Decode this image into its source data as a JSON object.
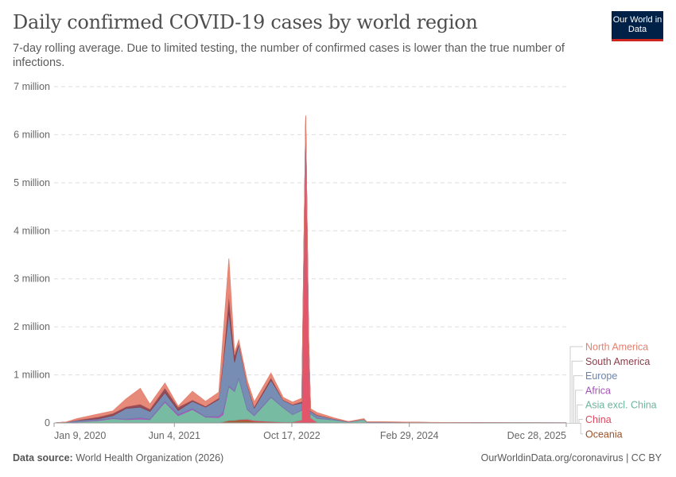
{
  "header": {
    "title": "Daily confirmed COVID-19 cases by world region",
    "subtitle": "7-day rolling average. Due to limited testing, the number of confirmed cases is lower than the true number of infections.",
    "logo_text": "Our World in Data"
  },
  "footer": {
    "source_label": "Data source:",
    "source": "World Health Organization (2026)",
    "credit": "OurWorldinData.org/coronavirus | CC BY"
  },
  "chart_data": {
    "type": "area",
    "stacked": true,
    "title": "Daily confirmed COVID-19 cases by world region",
    "xlabel": "",
    "ylabel": "",
    "ylim": [
      0,
      7000000
    ],
    "y_ticks": [
      0,
      1000000,
      2000000,
      3000000,
      4000000,
      5000000,
      6000000,
      7000000
    ],
    "y_tick_labels": [
      "0",
      "1 million",
      "2 million",
      "3 million",
      "4 million",
      "5 million",
      "6 million",
      "7 million"
    ],
    "x_range": [
      "2020-01-09",
      "2025-12-28"
    ],
    "x_ticks": [
      "2020-01-09",
      "2021-06-04",
      "2022-10-17",
      "2024-02-29",
      "2025-12-28"
    ],
    "x_tick_labels": [
      "Jan 9, 2020",
      "Jun 4, 2021",
      "Oct 17, 2022",
      "Feb 29, 2024",
      "Dec 28, 2025"
    ],
    "grid": "horizontal dashed",
    "legend_placement": "right",
    "unit_note": "values in millions of cases",
    "x": [
      "2020-01-09",
      "2020-03-01",
      "2020-04-15",
      "2020-07-15",
      "2020-09-15",
      "2020-11-10",
      "2021-01-10",
      "2021-02-20",
      "2021-04-25",
      "2021-06-20",
      "2021-08-20",
      "2021-10-15",
      "2021-12-10",
      "2021-12-28",
      "2022-01-22",
      "2022-02-15",
      "2022-03-05",
      "2022-04-10",
      "2022-05-10",
      "2022-07-20",
      "2022-09-10",
      "2022-10-20",
      "2022-11-28",
      "2022-12-15",
      "2022-12-28",
      "2023-01-05",
      "2023-02-01",
      "2023-04-15",
      "2023-06-15",
      "2023-08-20",
      "2023-09-01",
      "2024-01-01",
      "2024-06-01",
      "2025-01-01",
      "2025-12-28"
    ],
    "series": [
      {
        "name": "Oceania",
        "color": "#9a5129",
        "values": [
          0,
          0,
          0,
          0,
          0,
          0,
          0,
          0,
          0,
          0,
          0,
          0,
          0.01,
          0.02,
          0.05,
          0.05,
          0.06,
          0.06,
          0.03,
          0.02,
          0.01,
          0.01,
          0.01,
          0.01,
          0.01,
          0.005,
          0.005,
          0.005,
          0,
          0,
          0,
          0,
          0,
          0,
          0
        ]
      },
      {
        "name": "China",
        "color": "#e0475e",
        "values": [
          0,
          0,
          0,
          0,
          0,
          0,
          0,
          0,
          0,
          0,
          0,
          0,
          0,
          0.001,
          0.002,
          0.005,
          0.01,
          0.02,
          0.02,
          0.01,
          0.01,
          0.01,
          0.05,
          6.2,
          1.5,
          0.1,
          0.01,
          0.005,
          0,
          0,
          0,
          0,
          0,
          0,
          0
        ]
      },
      {
        "name": "Asia excl. China",
        "color": "#6bb59b",
        "values": [
          0,
          0.01,
          0.02,
          0.05,
          0.09,
          0.07,
          0.08,
          0.07,
          0.43,
          0.15,
          0.28,
          0.12,
          0.1,
          0.15,
          0.7,
          0.6,
          0.85,
          0.2,
          0.1,
          0.5,
          0.3,
          0.15,
          0.2,
          0.1,
          0.08,
          0.08,
          0.08,
          0.05,
          0.02,
          0.07,
          0.02,
          0.015,
          0.008,
          0.004,
          0.002
        ]
      },
      {
        "name": "Africa",
        "color": "#a652ba",
        "values": [
          0,
          0,
          0.001,
          0.015,
          0.01,
          0.01,
          0.03,
          0.01,
          0.02,
          0.03,
          0.02,
          0.01,
          0.03,
          0.05,
          0.02,
          0.01,
          0.01,
          0.01,
          0.01,
          0.01,
          0.005,
          0.005,
          0.005,
          0.002,
          0.002,
          0.002,
          0.002,
          0.001,
          0,
          0,
          0,
          0,
          0,
          0,
          0
        ]
      },
      {
        "name": "Europe",
        "color": "#6c83ad",
        "values": [
          0,
          0.01,
          0.03,
          0.02,
          0.05,
          0.22,
          0.22,
          0.16,
          0.18,
          0.08,
          0.15,
          0.2,
          0.35,
          1.0,
          1.55,
          0.6,
          0.7,
          0.5,
          0.15,
          0.35,
          0.15,
          0.2,
          0.15,
          0.05,
          0.06,
          0.06,
          0.06,
          0.02,
          0.005,
          0.01,
          0.003,
          0.004,
          0.002,
          0.001,
          0.001
        ]
      },
      {
        "name": "South America",
        "color": "#8c3e4a",
        "values": [
          0,
          0,
          0.01,
          0.04,
          0.05,
          0.04,
          0.06,
          0.05,
          0.1,
          0.07,
          0.03,
          0.02,
          0.03,
          0.08,
          0.35,
          0.15,
          0.03,
          0.02,
          0.03,
          0.05,
          0.01,
          0.01,
          0.03,
          0.01,
          0.01,
          0.01,
          0.01,
          0.005,
          0.002,
          0,
          0,
          0,
          0,
          0,
          0
        ]
      },
      {
        "name": "North America",
        "color": "#e5806f",
        "values": [
          0,
          0,
          0.03,
          0.06,
          0.05,
          0.16,
          0.33,
          0.1,
          0.1,
          0.02,
          0.18,
          0.1,
          0.12,
          0.5,
          0.75,
          0.05,
          0.07,
          0.08,
          0.1,
          0.1,
          0.05,
          0.05,
          0.07,
          0.03,
          0.03,
          0.04,
          0.05,
          0.02,
          0.005,
          0.01,
          0.003,
          0.003,
          0.002,
          0.001,
          0
        ]
      }
    ]
  }
}
